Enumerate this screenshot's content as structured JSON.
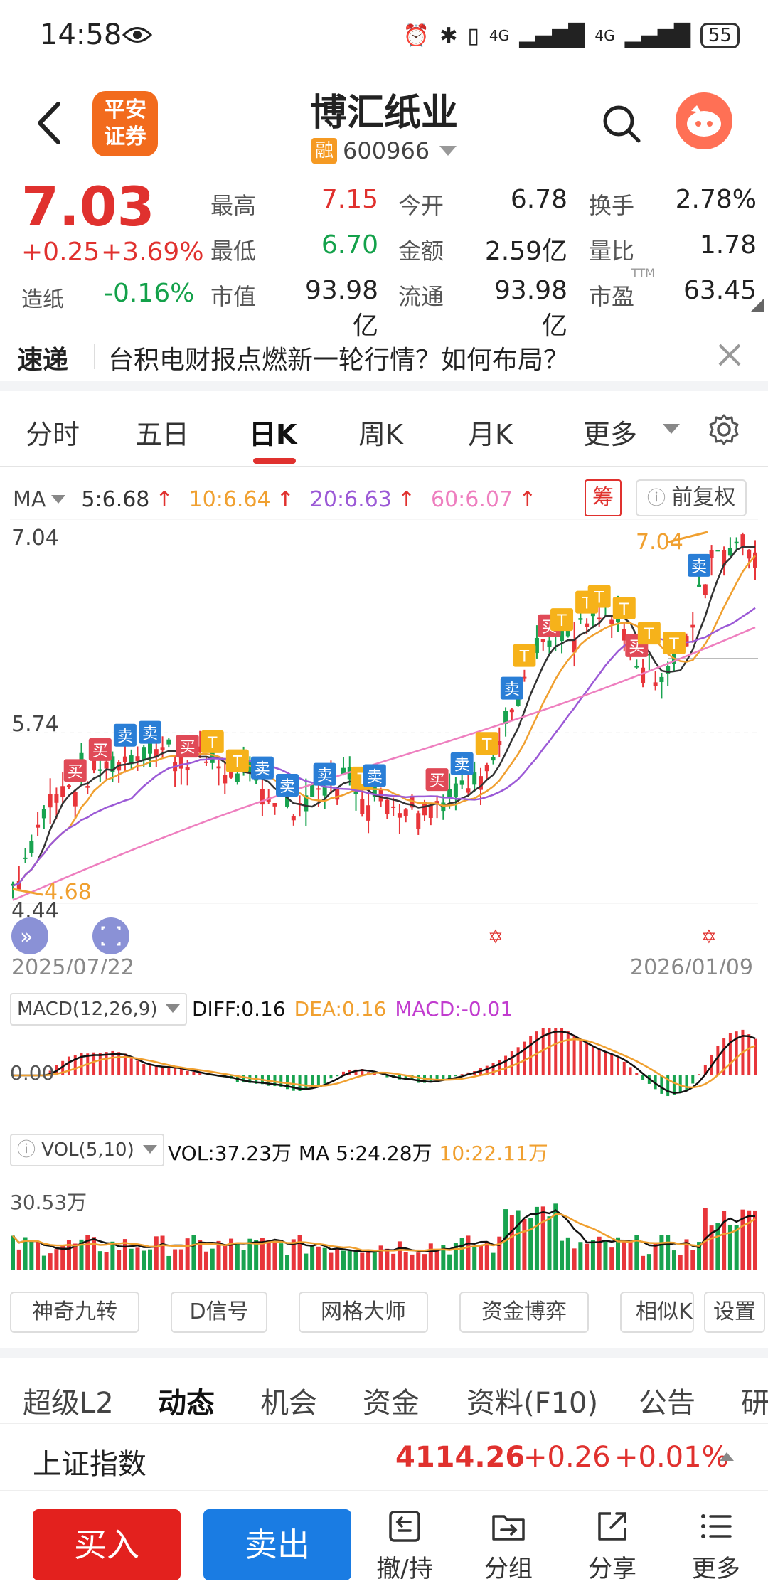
{
  "status_bar": {
    "time": "14:58",
    "network_1": "4G",
    "network_2": "4G",
    "battery": "55"
  },
  "header": {
    "broker_logo_text": "平安证券",
    "stock_name": "博汇纸业",
    "margin_badge": "融",
    "stock_code": "600966"
  },
  "quote": {
    "price": "7.03",
    "change": "+0.25",
    "change_pct": "+3.69%",
    "sector": "造纸",
    "sector_change": "-0.16%",
    "fields": [
      {
        "label": "最高",
        "value": "7.15",
        "tone": "red"
      },
      {
        "label": "今开",
        "value": "6.78",
        "tone": "black"
      },
      {
        "label": "换手",
        "value": "2.78%",
        "tone": "black"
      },
      {
        "label": "最低",
        "value": "6.70",
        "tone": "green"
      },
      {
        "label": "金额",
        "value": "2.59亿",
        "tone": "black"
      },
      {
        "label": "量比",
        "value": "1.78",
        "tone": "black"
      },
      {
        "label": "市值",
        "value": "93.98亿",
        "tone": "black"
      },
      {
        "label": "流通",
        "value": "93.98亿",
        "tone": "black"
      },
      {
        "label": "市盈",
        "value": "63.45",
        "tone": "black"
      }
    ],
    "pe_suffix": "TTM"
  },
  "news": {
    "tag": "速递",
    "text": "台积电财报点燃新一轮行情？如何布局？"
  },
  "period_tabs": [
    "分时",
    "五日",
    "日K",
    "周K",
    "月K",
    "更多"
  ],
  "active_period": "日K",
  "ma_legend": {
    "label": "MA",
    "items": [
      {
        "text": "5:6.68",
        "color": "#333333"
      },
      {
        "text": "10:6.64",
        "color": "#f0a030"
      },
      {
        "text": "20:6.63",
        "color": "#9b59d6"
      },
      {
        "text": "60:6.07",
        "color": "#ee7fbf"
      }
    ],
    "chips_button": "筹",
    "adjust_button": "前复权"
  },
  "chart_data": [
    {
      "type": "candlestick",
      "y_labels": [
        "7.04",
        "5.74",
        "4.44"
      ],
      "high_annotation": "7.04",
      "low_annotation": "4.68",
      "x_start": "2025/07/22",
      "x_end": "2026/01/09",
      "markers": {
        "buy": "买",
        "sell": "卖",
        "t": "T"
      }
    },
    {
      "type": "macd",
      "indicator": "MACD(12,26,9)",
      "diff": "DIFF:0.16",
      "dea": "DEA:0.16",
      "macd": "MACD:-0.01",
      "zero_label": "0.00"
    },
    {
      "type": "volume",
      "indicator": "VOL(5,10)",
      "vol": "VOL:37.23万",
      "ma5": "MA 5:24.28万",
      "ma10": "10:22.11万",
      "y_label": "30.53万"
    }
  ],
  "tools": [
    "神奇九转",
    "D信号",
    "网格大师",
    "资金博弈",
    "相似K",
    "设置"
  ],
  "info_tabs": [
    "超级L2",
    "动态",
    "机会",
    "资金",
    "资料(F10)",
    "公告",
    "研"
  ],
  "active_info_tab": "动态",
  "index": {
    "name": "上证指数",
    "value": "4114.26",
    "change": "+0.26",
    "pct": "+0.01%"
  },
  "actions": {
    "buy": "买入",
    "sell": "卖出",
    "items": [
      "撤/持",
      "分组",
      "分享",
      "更多"
    ]
  }
}
